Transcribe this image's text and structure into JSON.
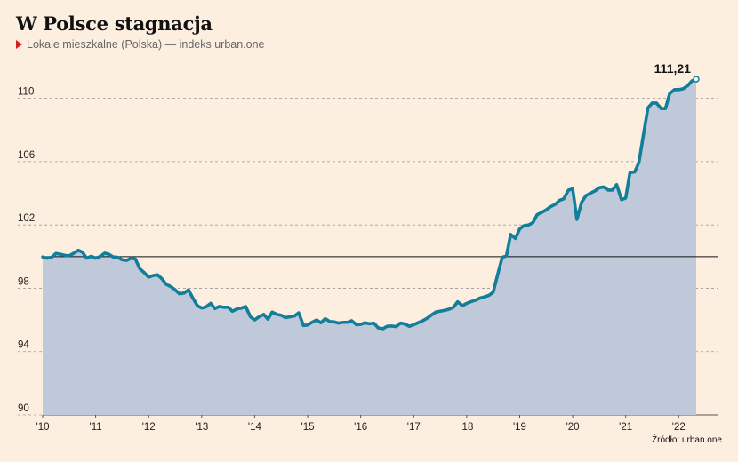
{
  "header": {
    "title": "W Polsce stagnacja",
    "subtitle": "Lokale mieszkalne (Polska) — indeks urban.one"
  },
  "source": "Źródło: urban.one",
  "colors": {
    "line": "#127e9a",
    "area": "#bfc9d9",
    "background": "#fdefe0",
    "marker": "#d32020",
    "baseline": "#111111",
    "grid": "#9a9a9a"
  },
  "chart_data": {
    "type": "area",
    "title": "W Polsce stagnacja",
    "subtitle": "Lokale mieszkalne (Polska) — indeks urban.one",
    "ylim": [
      90,
      112
    ],
    "yticks": [
      90,
      94,
      98,
      102,
      106,
      110
    ],
    "ytick_labels": [
      "90",
      "94",
      "98",
      "102",
      "106",
      "110"
    ],
    "xlim": [
      2010.0,
      2022.75
    ],
    "xticks": [
      2010,
      2011,
      2012,
      2013,
      2014,
      2015,
      2016,
      2017,
      2018,
      2019,
      2020,
      2021,
      2022
    ],
    "xtick_labels": [
      "'10",
      "'11",
      "'12",
      "'13",
      "'14",
      "'15",
      "'16",
      "'17",
      "'18",
      "'19",
      "'20",
      "'21",
      "'22"
    ],
    "reference_line": 100,
    "grid": true,
    "last_value_label": "111,21",
    "points": [
      [
        2010.0,
        99.98
      ],
      [
        2010.08,
        99.9
      ],
      [
        2010.17,
        99.96
      ],
      [
        2010.25,
        100.2
      ],
      [
        2010.33,
        100.15
      ],
      [
        2010.42,
        100.08
      ],
      [
        2010.5,
        100.05
      ],
      [
        2010.58,
        100.2
      ],
      [
        2010.67,
        100.4
      ],
      [
        2010.75,
        100.28
      ],
      [
        2010.83,
        99.9
      ],
      [
        2010.92,
        100.02
      ],
      [
        2011.0,
        99.9
      ],
      [
        2011.08,
        100.0
      ],
      [
        2011.17,
        100.22
      ],
      [
        2011.25,
        100.15
      ],
      [
        2011.33,
        99.98
      ],
      [
        2011.42,
        99.95
      ],
      [
        2011.5,
        99.8
      ],
      [
        2011.58,
        99.76
      ],
      [
        2011.67,
        99.9
      ],
      [
        2011.75,
        99.85
      ],
      [
        2011.83,
        99.25
      ],
      [
        2011.92,
        98.98
      ],
      [
        2012.0,
        98.7
      ],
      [
        2012.08,
        98.8
      ],
      [
        2012.17,
        98.85
      ],
      [
        2012.25,
        98.6
      ],
      [
        2012.33,
        98.25
      ],
      [
        2012.42,
        98.1
      ],
      [
        2012.5,
        97.9
      ],
      [
        2012.58,
        97.65
      ],
      [
        2012.67,
        97.7
      ],
      [
        2012.75,
        97.9
      ],
      [
        2012.83,
        97.4
      ],
      [
        2012.92,
        96.9
      ],
      [
        2013.0,
        96.75
      ],
      [
        2013.08,
        96.82
      ],
      [
        2013.17,
        97.05
      ],
      [
        2013.25,
        96.72
      ],
      [
        2013.33,
        96.85
      ],
      [
        2013.42,
        96.8
      ],
      [
        2013.5,
        96.8
      ],
      [
        2013.58,
        96.55
      ],
      [
        2013.67,
        96.7
      ],
      [
        2013.75,
        96.75
      ],
      [
        2013.83,
        96.85
      ],
      [
        2013.92,
        96.2
      ],
      [
        2014.0,
        96.0
      ],
      [
        2014.08,
        96.2
      ],
      [
        2014.17,
        96.35
      ],
      [
        2014.25,
        96.05
      ],
      [
        2014.33,
        96.5
      ],
      [
        2014.42,
        96.35
      ],
      [
        2014.5,
        96.3
      ],
      [
        2014.58,
        96.15
      ],
      [
        2014.67,
        96.2
      ],
      [
        2014.75,
        96.25
      ],
      [
        2014.83,
        96.45
      ],
      [
        2014.92,
        95.65
      ],
      [
        2015.0,
        95.68
      ],
      [
        2015.08,
        95.85
      ],
      [
        2015.17,
        96.0
      ],
      [
        2015.25,
        95.82
      ],
      [
        2015.33,
        96.08
      ],
      [
        2015.42,
        95.9
      ],
      [
        2015.5,
        95.88
      ],
      [
        2015.58,
        95.8
      ],
      [
        2015.67,
        95.85
      ],
      [
        2015.75,
        95.85
      ],
      [
        2015.83,
        95.95
      ],
      [
        2015.92,
        95.7
      ],
      [
        2016.0,
        95.72
      ],
      [
        2016.08,
        95.82
      ],
      [
        2016.17,
        95.76
      ],
      [
        2016.25,
        95.8
      ],
      [
        2016.33,
        95.5
      ],
      [
        2016.42,
        95.45
      ],
      [
        2016.5,
        95.6
      ],
      [
        2016.58,
        95.62
      ],
      [
        2016.67,
        95.58
      ],
      [
        2016.75,
        95.8
      ],
      [
        2016.83,
        95.75
      ],
      [
        2016.92,
        95.6
      ],
      [
        2017.0,
        95.7
      ],
      [
        2017.08,
        95.82
      ],
      [
        2017.17,
        95.95
      ],
      [
        2017.25,
        96.1
      ],
      [
        2017.33,
        96.3
      ],
      [
        2017.42,
        96.5
      ],
      [
        2017.5,
        96.55
      ],
      [
        2017.58,
        96.6
      ],
      [
        2017.67,
        96.68
      ],
      [
        2017.75,
        96.8
      ],
      [
        2017.83,
        97.15
      ],
      [
        2017.92,
        96.9
      ],
      [
        2018.0,
        97.05
      ],
      [
        2018.08,
        97.15
      ],
      [
        2018.17,
        97.25
      ],
      [
        2018.25,
        97.38
      ],
      [
        2018.33,
        97.45
      ],
      [
        2018.42,
        97.55
      ],
      [
        2018.5,
        97.75
      ],
      [
        2018.58,
        98.8
      ],
      [
        2018.67,
        99.95
      ],
      [
        2018.75,
        100.05
      ],
      [
        2018.83,
        101.4
      ],
      [
        2018.92,
        101.15
      ],
      [
        2019.0,
        101.75
      ],
      [
        2019.08,
        101.95
      ],
      [
        2019.17,
        102.0
      ],
      [
        2019.25,
        102.15
      ],
      [
        2019.33,
        102.65
      ],
      [
        2019.42,
        102.8
      ],
      [
        2019.5,
        102.95
      ],
      [
        2019.58,
        103.15
      ],
      [
        2019.67,
        103.3
      ],
      [
        2019.75,
        103.55
      ],
      [
        2019.83,
        103.65
      ],
      [
        2019.92,
        104.2
      ],
      [
        2020.0,
        104.28
      ],
      [
        2020.08,
        102.35
      ],
      [
        2020.17,
        103.45
      ],
      [
        2020.25,
        103.85
      ],
      [
        2020.33,
        104.0
      ],
      [
        2020.42,
        104.15
      ],
      [
        2020.5,
        104.35
      ],
      [
        2020.58,
        104.4
      ],
      [
        2020.67,
        104.2
      ],
      [
        2020.75,
        104.2
      ],
      [
        2020.83,
        104.55
      ],
      [
        2020.92,
        103.6
      ],
      [
        2021.0,
        103.7
      ],
      [
        2021.08,
        105.3
      ],
      [
        2021.17,
        105.35
      ],
      [
        2021.25,
        105.95
      ],
      [
        2021.33,
        107.6
      ],
      [
        2021.42,
        109.4
      ],
      [
        2021.5,
        109.7
      ],
      [
        2021.58,
        109.7
      ],
      [
        2021.67,
        109.35
      ],
      [
        2021.75,
        109.35
      ],
      [
        2021.83,
        110.3
      ],
      [
        2021.92,
        110.55
      ],
      [
        2022.0,
        110.55
      ],
      [
        2022.08,
        110.6
      ],
      [
        2022.17,
        110.8
      ],
      [
        2022.25,
        111.1
      ],
      [
        2022.33,
        111.21
      ]
    ]
  }
}
